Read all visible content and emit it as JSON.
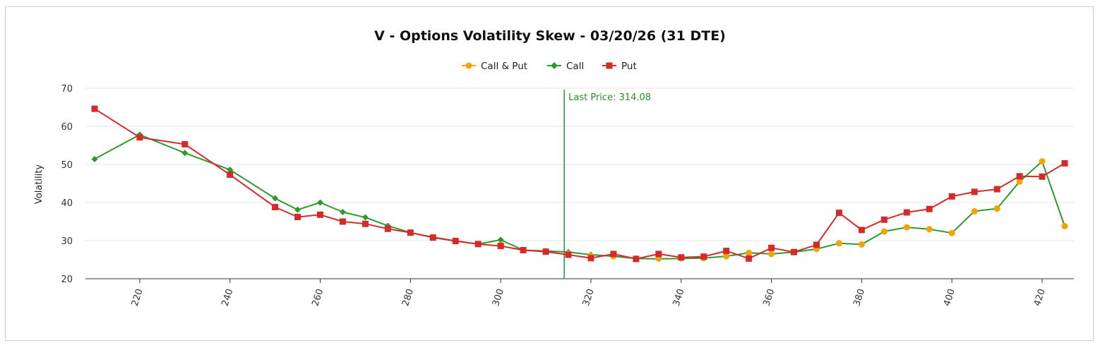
{
  "chart_data": {
    "type": "line",
    "title": "V - Options Volatility Skew - 03/20/26 (31 DTE)",
    "xlabel": "",
    "ylabel": "Volatility",
    "xlim": [
      210,
      425
    ],
    "ylim": [
      20,
      70
    ],
    "x_ticks": [
      220,
      240,
      260,
      280,
      300,
      320,
      340,
      360,
      380,
      400,
      420
    ],
    "y_ticks": [
      20,
      30,
      40,
      50,
      60,
      70
    ],
    "grid": true,
    "legend_position": "top-center",
    "legend": [
      "Call & Put",
      "Call",
      "Put"
    ],
    "colors": {
      "call_put": "#f4a300",
      "call": "#2e9a2e",
      "put": "#d42a2a",
      "last_price": "#2e8b2e"
    },
    "annotation": {
      "label": "Last Price: 314.08",
      "x": 314.08
    },
    "series": [
      {
        "name": "Call & Put",
        "marker": "circle",
        "points": [
          [
            295,
            29.1
          ],
          [
            300,
            28.9
          ],
          [
            305,
            27.5
          ],
          [
            310,
            27.2
          ],
          [
            315,
            26.6
          ],
          [
            320,
            26.0
          ],
          [
            325,
            25.9
          ],
          [
            330,
            25.3
          ],
          [
            335,
            25.3
          ],
          [
            340,
            25.4
          ],
          [
            345,
            25.4
          ],
          [
            350,
            25.9
          ],
          [
            355,
            26.8
          ],
          [
            360,
            26.5
          ],
          [
            365,
            27.0
          ],
          [
            370,
            27.8
          ],
          [
            375,
            29.3
          ],
          [
            380,
            29.0
          ],
          [
            385,
            32.4
          ],
          [
            390,
            33.5
          ],
          [
            395,
            33.0
          ],
          [
            400,
            32.0
          ],
          [
            405,
            37.7
          ],
          [
            410,
            38.4
          ],
          [
            415,
            45.5
          ],
          [
            420,
            50.8
          ],
          [
            425,
            33.8
          ]
        ]
      },
      {
        "name": "Call",
        "marker": "diamond",
        "points": [
          [
            210,
            51.4
          ],
          [
            220,
            57.8
          ],
          [
            230,
            53.0
          ],
          [
            240,
            48.6
          ],
          [
            250,
            41.1
          ],
          [
            255,
            38.1
          ],
          [
            260,
            40.0
          ],
          [
            265,
            37.5
          ],
          [
            270,
            36.1
          ],
          [
            275,
            33.9
          ],
          [
            280,
            32.1
          ],
          [
            285,
            30.9
          ],
          [
            290,
            29.9
          ],
          [
            295,
            29.1
          ],
          [
            300,
            30.2
          ],
          [
            305,
            27.5
          ],
          [
            310,
            27.3
          ],
          [
            315,
            27.0
          ],
          [
            320,
            26.3
          ],
          [
            325,
            25.9
          ],
          [
            330,
            25.3
          ],
          [
            335,
            25.2
          ],
          [
            340,
            25.3
          ],
          [
            345,
            25.4
          ],
          [
            350,
            25.9
          ],
          [
            355,
            26.8
          ],
          [
            360,
            26.5
          ],
          [
            365,
            27.0
          ],
          [
            370,
            27.8
          ],
          [
            375,
            29.3
          ],
          [
            380,
            29.0
          ],
          [
            385,
            32.4
          ],
          [
            390,
            33.5
          ],
          [
            395,
            33.0
          ],
          [
            400,
            32.0
          ],
          [
            405,
            37.7
          ],
          [
            410,
            38.4
          ],
          [
            415,
            45.5
          ],
          [
            420,
            50.8
          ],
          [
            425,
            33.8
          ]
        ]
      },
      {
        "name": "Put",
        "marker": "square",
        "points": [
          [
            210,
            64.6
          ],
          [
            220,
            57.1
          ],
          [
            230,
            55.3
          ],
          [
            240,
            47.3
          ],
          [
            250,
            38.8
          ],
          [
            255,
            36.2
          ],
          [
            260,
            36.8
          ],
          [
            265,
            35.0
          ],
          [
            270,
            34.4
          ],
          [
            275,
            33.1
          ],
          [
            280,
            32.1
          ],
          [
            285,
            30.8
          ],
          [
            290,
            29.9
          ],
          [
            295,
            29.1
          ],
          [
            300,
            28.6
          ],
          [
            305,
            27.5
          ],
          [
            310,
            27.1
          ],
          [
            315,
            26.3
          ],
          [
            320,
            25.4
          ],
          [
            325,
            26.5
          ],
          [
            330,
            25.2
          ],
          [
            335,
            26.5
          ],
          [
            340,
            25.6
          ],
          [
            345,
            25.8
          ],
          [
            350,
            27.3
          ],
          [
            355,
            25.3
          ],
          [
            360,
            28.1
          ],
          [
            365,
            27.0
          ],
          [
            370,
            28.9
          ],
          [
            375,
            37.3
          ],
          [
            380,
            32.8
          ],
          [
            385,
            35.5
          ],
          [
            390,
            37.4
          ],
          [
            395,
            38.3
          ],
          [
            400,
            41.6
          ],
          [
            405,
            42.8
          ],
          [
            410,
            43.5
          ],
          [
            415,
            46.9
          ],
          [
            420,
            46.8
          ],
          [
            425,
            50.3
          ]
        ]
      }
    ]
  }
}
